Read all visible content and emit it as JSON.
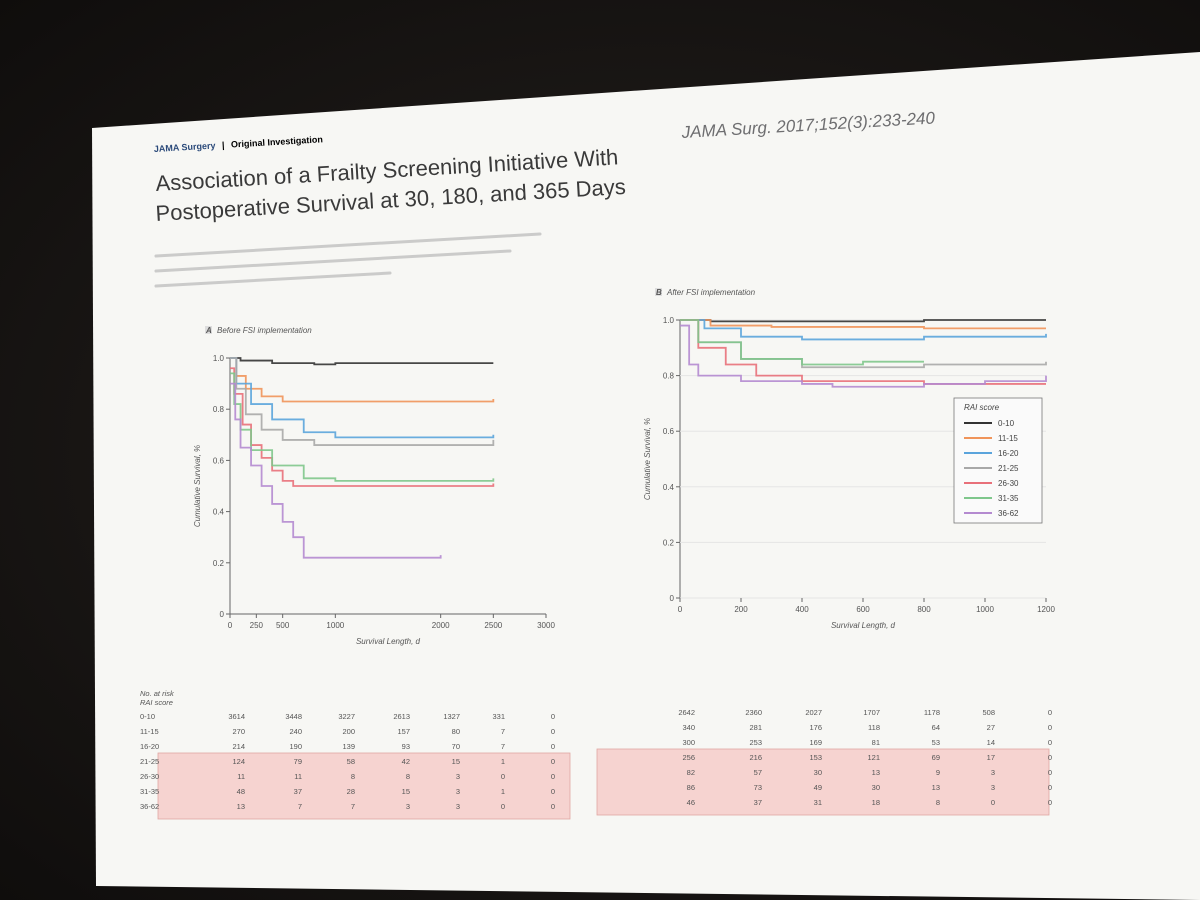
{
  "article": {
    "journal": "JAMA Surgery",
    "separator": "|",
    "section": "Original Investigation",
    "title_line1": "Association of a Frailty Screening Initiative With",
    "title_line2": "Postoperative Survival at 30, 180, and 365 Days",
    "citation": "JAMA Surg. 2017;152(3):233-240"
  },
  "colors": {
    "slide_bg": "#f7f7f4",
    "risk_highlight": "#f6d3d0",
    "series": [
      "#333333",
      "#f0945a",
      "#5aa4dc",
      "#a8a8a8",
      "#e8707a",
      "#7fc78c",
      "#b48ad0"
    ]
  },
  "chart_data": [
    {
      "type": "line",
      "panel": "A",
      "panel_label": "Before FSI implementation",
      "xlabel": "Survival Length, d",
      "ylabel": "Cumulative Survival, %",
      "xlim": [
        0,
        3000
      ],
      "ylim": [
        0,
        1.0
      ],
      "x_ticks": [
        0,
        250,
        500,
        1000,
        2000,
        2500,
        3000
      ],
      "x_tick_labels": [
        "0",
        "250",
        "500",
        "1000",
        "2000",
        "2500",
        "3000"
      ],
      "y_ticks": [
        0,
        0.2,
        0.4,
        0.6,
        0.8,
        1.0
      ],
      "y_tick_labels": [
        "0",
        "0.2",
        "0.4",
        "0.6",
        "0.8",
        "1.0"
      ],
      "series": [
        {
          "points": [
            [
              0,
              1.0
            ],
            [
              100,
              0.99
            ],
            [
              400,
              0.98
            ],
            [
              800,
              0.975
            ],
            [
              1000,
              0.98
            ],
            [
              2500,
              0.98
            ]
          ]
        },
        {
          "points": [
            [
              0,
              1.0
            ],
            [
              60,
              0.93
            ],
            [
              150,
              0.88
            ],
            [
              300,
              0.85
            ],
            [
              500,
              0.83
            ],
            [
              800,
              0.83
            ],
            [
              1000,
              0.83
            ],
            [
              2500,
              0.84
            ]
          ]
        },
        {
          "points": [
            [
              0,
              1.0
            ],
            [
              60,
              0.9
            ],
            [
              200,
              0.82
            ],
            [
              400,
              0.76
            ],
            [
              700,
              0.71
            ],
            [
              1000,
              0.69
            ],
            [
              2500,
              0.7
            ]
          ]
        },
        {
          "points": [
            [
              0,
              1.0
            ],
            [
              60,
              0.88
            ],
            [
              150,
              0.78
            ],
            [
              300,
              0.72
            ],
            [
              500,
              0.68
            ],
            [
              800,
              0.66
            ],
            [
              1000,
              0.66
            ],
            [
              2500,
              0.68
            ]
          ]
        },
        {
          "points": [
            [
              0,
              0.96
            ],
            [
              40,
              0.86
            ],
            [
              120,
              0.74
            ],
            [
              200,
              0.66
            ],
            [
              300,
              0.61
            ],
            [
              400,
              0.56
            ],
            [
              500,
              0.52
            ],
            [
              600,
              0.5
            ],
            [
              1000,
              0.5
            ],
            [
              2500,
              0.51
            ]
          ]
        },
        {
          "points": [
            [
              0,
              0.94
            ],
            [
              40,
              0.82
            ],
            [
              100,
              0.72
            ],
            [
              200,
              0.64
            ],
            [
              400,
              0.58
            ],
            [
              700,
              0.53
            ],
            [
              1000,
              0.52
            ],
            [
              2500,
              0.53
            ]
          ]
        },
        {
          "points": [
            [
              0,
              0.9
            ],
            [
              50,
              0.76
            ],
            [
              100,
              0.65
            ],
            [
              200,
              0.58
            ],
            [
              300,
              0.5
            ],
            [
              400,
              0.43
            ],
            [
              500,
              0.36
            ],
            [
              600,
              0.3
            ],
            [
              700,
              0.22
            ],
            [
              1000,
              0.22
            ],
            [
              2000,
              0.23
            ]
          ]
        }
      ]
    },
    {
      "type": "line",
      "panel": "B",
      "panel_label": "After FSI implementation",
      "xlabel": "Survival Length, d",
      "ylabel": "Cumulative Survival, %",
      "xlim": [
        0,
        1200
      ],
      "ylim": [
        0,
        1.0
      ],
      "x_ticks": [
        0,
        200,
        400,
        600,
        800,
        1000,
        1200
      ],
      "x_tick_labels": [
        "0",
        "200",
        "400",
        "600",
        "800",
        "1000",
        "1200"
      ],
      "y_ticks": [
        0,
        0.2,
        0.4,
        0.6,
        0.8,
        1.0
      ],
      "y_tick_labels": [
        "0",
        "0.2",
        "0.4",
        "0.6",
        "0.8",
        "1.0"
      ],
      "legend_title": "RAI score",
      "legend_position": "right",
      "legend_entries": [
        "0-10",
        "11-15",
        "16-20",
        "21-25",
        "26-30",
        "31-35",
        "36-62"
      ],
      "series": [
        {
          "name": "0-10",
          "points": [
            [
              0,
              1.0
            ],
            [
              100,
              0.995
            ],
            [
              400,
              0.995
            ],
            [
              800,
              1.0
            ],
            [
              1200,
              1.0
            ]
          ]
        },
        {
          "name": "11-15",
          "points": [
            [
              0,
              1.0
            ],
            [
              100,
              0.98
            ],
            [
              300,
              0.975
            ],
            [
              500,
              0.975
            ],
            [
              800,
              0.97
            ],
            [
              1200,
              0.97
            ]
          ]
        },
        {
          "name": "16-20",
          "points": [
            [
              0,
              1.0
            ],
            [
              80,
              0.97
            ],
            [
              200,
              0.94
            ],
            [
              400,
              0.93
            ],
            [
              600,
              0.93
            ],
            [
              800,
              0.94
            ],
            [
              1200,
              0.95
            ]
          ]
        },
        {
          "name": "21-25",
          "points": [
            [
              0,
              1.0
            ],
            [
              60,
              0.92
            ],
            [
              200,
              0.86
            ],
            [
              400,
              0.83
            ],
            [
              600,
              0.83
            ],
            [
              800,
              0.84
            ],
            [
              1200,
              0.85
            ]
          ]
        },
        {
          "name": "26-30",
          "points": [
            [
              0,
              1.0
            ],
            [
              60,
              0.9
            ],
            [
              150,
              0.84
            ],
            [
              250,
              0.8
            ],
            [
              400,
              0.78
            ],
            [
              600,
              0.78
            ],
            [
              800,
              0.77
            ],
            [
              1000,
              0.77
            ],
            [
              1200,
              0.77
            ]
          ]
        },
        {
          "name": "31-35",
          "points": [
            [
              0,
              1.0
            ],
            [
              60,
              0.92
            ],
            [
              200,
              0.86
            ],
            [
              400,
              0.84
            ],
            [
              600,
              0.85
            ],
            [
              800,
              0.85
            ]
          ]
        },
        {
          "name": "36-62",
          "points": [
            [
              0,
              0.98
            ],
            [
              30,
              0.84
            ],
            [
              60,
              0.8
            ],
            [
              200,
              0.78
            ],
            [
              400,
              0.77
            ],
            [
              500,
              0.76
            ],
            [
              800,
              0.77
            ],
            [
              1000,
              0.78
            ],
            [
              1200,
              0.8
            ]
          ]
        }
      ]
    }
  ],
  "risk_tables": [
    {
      "panel": "A",
      "header": [
        "No. at risk",
        "RAI score"
      ],
      "rows": [
        {
          "label": "0-10",
          "values": [
            "3614",
            "3448",
            "3227",
            "2613",
            "1327",
            "331",
            "0"
          ]
        },
        {
          "label": "11-15",
          "values": [
            "270",
            "240",
            "200",
            "157",
            "80",
            "7",
            "0"
          ]
        },
        {
          "label": "16-20",
          "values": [
            "214",
            "190",
            "139",
            "93",
            "70",
            "7",
            "0"
          ]
        },
        {
          "label": "21-25",
          "values": [
            "124",
            "79",
            "58",
            "42",
            "15",
            "1",
            "0"
          ]
        },
        {
          "label": "26-30",
          "values": [
            "11",
            "11",
            "8",
            "8",
            "3",
            "0",
            "0"
          ]
        },
        {
          "label": "31-35",
          "values": [
            "48",
            "37",
            "28",
            "15",
            "3",
            "1",
            "0"
          ]
        },
        {
          "label": "36-62",
          "values": [
            "13",
            "7",
            "7",
            "3",
            "3",
            "0",
            "0"
          ]
        }
      ]
    },
    {
      "panel": "B",
      "rows": [
        {
          "label": "",
          "values": [
            "2642",
            "2360",
            "2027",
            "1707",
            "1178",
            "508",
            "0"
          ]
        },
        {
          "label": "",
          "values": [
            "340",
            "281",
            "176",
            "118",
            "64",
            "27",
            "0"
          ]
        },
        {
          "label": "",
          "values": [
            "300",
            "253",
            "169",
            "81",
            "53",
            "14",
            "0"
          ]
        },
        {
          "label": "",
          "values": [
            "256",
            "216",
            "153",
            "121",
            "69",
            "17",
            "0"
          ]
        },
        {
          "label": "",
          "values": [
            "82",
            "57",
            "30",
            "13",
            "9",
            "3",
            "0"
          ]
        },
        {
          "label": "",
          "values": [
            "86",
            "73",
            "49",
            "30",
            "13",
            "3",
            "0"
          ]
        },
        {
          "label": "",
          "values": [
            "46",
            "37",
            "31",
            "18",
            "8",
            "0",
            "0"
          ]
        }
      ]
    }
  ]
}
